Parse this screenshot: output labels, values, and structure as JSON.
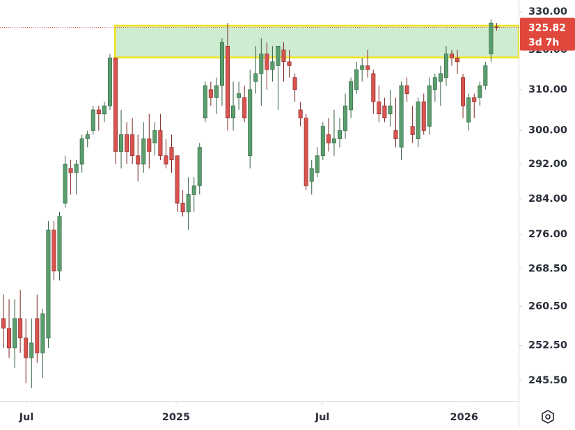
{
  "chart_data": {
    "type": "candlestick",
    "log_scale": true,
    "up_color": "#5b9e6e",
    "down_color": "#d9534f",
    "zone_color": "#a6dca9",
    "zone_border_color": "#f2e21a",
    "open": [
      258,
      256,
      252,
      258,
      254,
      250,
      258,
      251,
      254,
      277,
      268,
      283,
      291,
      290,
      292,
      298,
      300,
      305,
      304,
      306,
      318,
      295,
      299,
      299,
      294,
      292,
      298,
      297,
      300,
      294,
      296,
      294,
      283,
      281,
      285,
      287,
      303,
      310,
      308,
      311,
      321,
      303,
      308,
      308,
      294,
      312,
      314,
      319,
      315,
      316,
      320,
      317,
      313,
      305,
      303,
      288,
      290,
      294,
      299,
      297,
      298,
      300,
      305,
      310,
      315,
      316,
      314,
      307,
      306,
      304,
      300,
      296,
      311,
      301,
      298,
      307,
      301,
      310,
      312,
      313,
      319,
      318,
      313,
      302,
      308,
      308,
      311,
      319,
      326
    ],
    "high": [
      263,
      262,
      262,
      264,
      258,
      258,
      263,
      260,
      279,
      279,
      281,
      294,
      293,
      293,
      299,
      300,
      306,
      306,
      307,
      319,
      318,
      305,
      302,
      303,
      299,
      302,
      304,
      302,
      304,
      298,
      299,
      294,
      286,
      289,
      289,
      297,
      312,
      312,
      313,
      323,
      327,
      312,
      312,
      311,
      315,
      321,
      323,
      322,
      321,
      321,
      322,
      320,
      314,
      307,
      304,
      293,
      296,
      302,
      303,
      305,
      303,
      309,
      313,
      317,
      318,
      320,
      315,
      311,
      308,
      310,
      308,
      312,
      313,
      306,
      308,
      309,
      313,
      314,
      316,
      321,
      320,
      320,
      314,
      309,
      309,
      312,
      317,
      328,
      327
    ],
    "low": [
      252,
      250,
      248,
      251,
      245,
      244,
      249,
      246,
      252,
      266,
      266,
      282,
      285,
      285,
      290,
      296,
      299,
      300,
      302,
      305,
      292,
      291,
      292,
      292,
      288,
      290,
      291,
      294,
      293,
      291,
      290,
      281,
      280,
      277,
      281,
      285,
      302,
      306,
      304,
      306,
      300,
      300,
      305,
      302,
      291,
      309,
      306,
      310,
      312,
      305,
      312,
      313,
      307,
      301,
      286,
      285,
      289,
      293,
      295,
      294,
      296,
      298,
      303,
      309,
      312,
      313,
      304,
      302,
      302,
      301,
      296,
      293,
      307,
      297,
      296,
      299,
      299,
      307,
      306,
      311,
      316,
      314,
      303,
      300,
      303,
      306,
      310,
      317,
      325
    ],
    "close": [
      256,
      252,
      258,
      254,
      250,
      253,
      251,
      259,
      277,
      268,
      280,
      292,
      290,
      292,
      298,
      299,
      305,
      304,
      306,
      318,
      295,
      299,
      295,
      294,
      292,
      298,
      295,
      300,
      294,
      292,
      293,
      283,
      281,
      285,
      287,
      296,
      311,
      308,
      311,
      322,
      303,
      306,
      309,
      303,
      310,
      314,
      319,
      315,
      317,
      321,
      317,
      316,
      310,
      303,
      287,
      291,
      294,
      301,
      297,
      298,
      300,
      306,
      312,
      315,
      316,
      315,
      307,
      304,
      303,
      306,
      298,
      311,
      309,
      299,
      307,
      300,
      311,
      313,
      314,
      319,
      318,
      317,
      306,
      308,
      307,
      311,
      316,
      327,
      325.82
    ],
    "ylim": [
      241.4,
      333.1
    ],
    "yticks": [
      {
        "value": 245.5,
        "label": "245.50"
      },
      {
        "value": 252.5,
        "label": "252.50"
      },
      {
        "value": 260.5,
        "label": "260.50"
      },
      {
        "value": 268.5,
        "label": "268.50"
      },
      {
        "value": 276,
        "label": "276.00"
      },
      {
        "value": 284,
        "label": "284.00"
      },
      {
        "value": 292,
        "label": "292.00"
      },
      {
        "value": 300,
        "label": "300.00"
      },
      {
        "value": 310,
        "label": "310.00"
      },
      {
        "value": 320,
        "label": "320.00"
      },
      {
        "value": 330,
        "label": "330.00"
      }
    ],
    "xticks": [
      {
        "value": 4.1,
        "label": "Jul"
      },
      {
        "value": 30.8,
        "label": "2025"
      },
      {
        "value": 56.9,
        "label": "Jul"
      },
      {
        "value": 82.2,
        "label": "2026"
      }
    ],
    "zone": [
      318.1,
      326.3
    ],
    "last_price": 325.82,
    "countdown": "3d 7h"
  }
}
